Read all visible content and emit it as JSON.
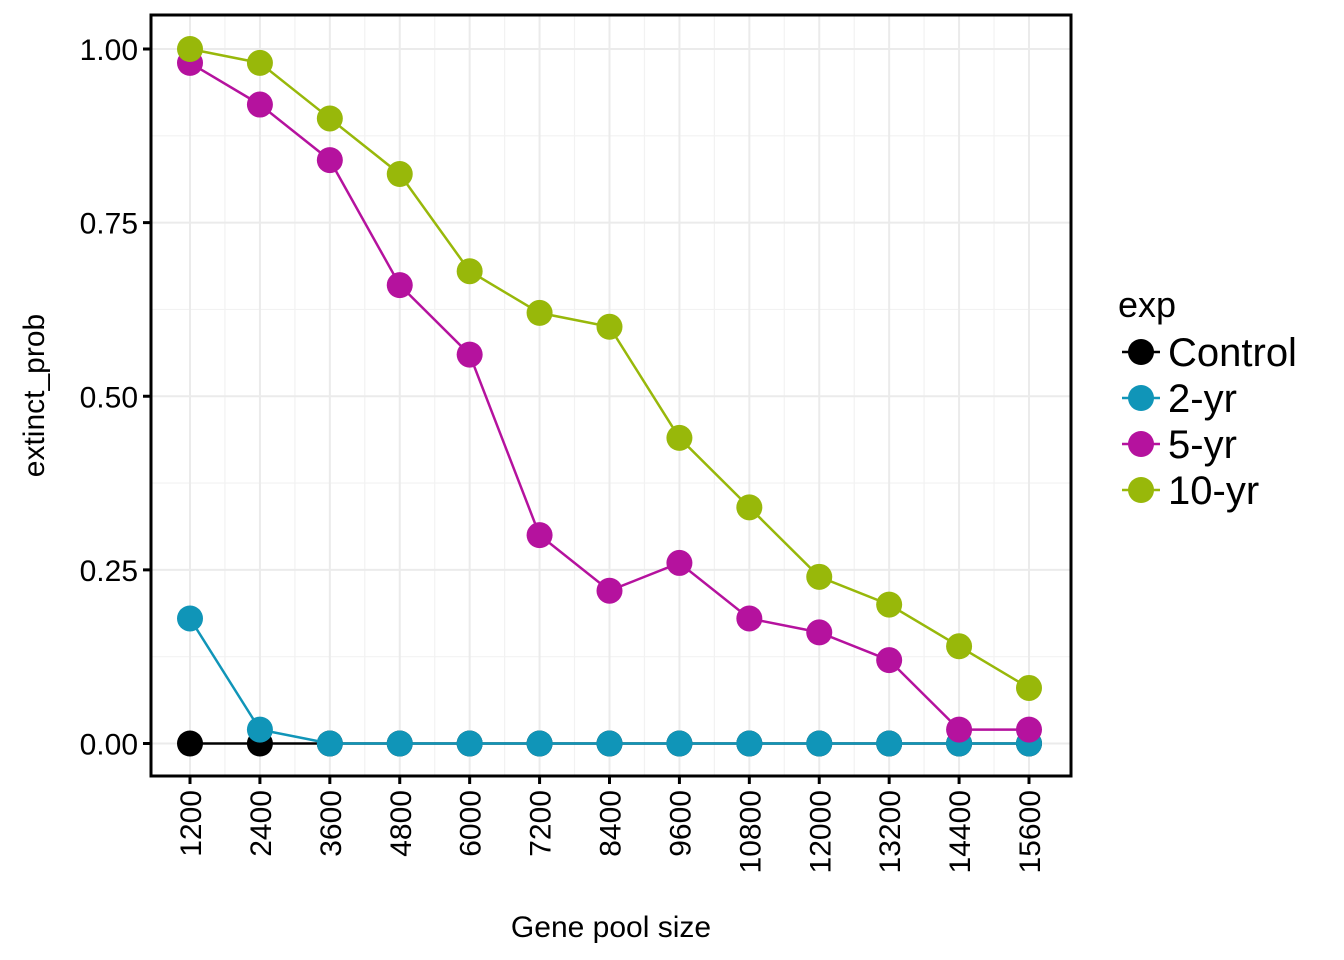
{
  "chart_data": {
    "type": "line",
    "xlabel": "Gene pool size",
    "ylabel": "extinct_prob",
    "categories": [
      "1200",
      "2400",
      "3600",
      "4800",
      "6000",
      "7200",
      "8400",
      "9600",
      "10800",
      "12000",
      "13200",
      "14400",
      "15600"
    ],
    "y_ticks": [
      "0.00",
      "0.25",
      "0.50",
      "0.75",
      "1.00"
    ],
    "ylim": [
      -0.047,
      1.047
    ],
    "grid": true,
    "legend": {
      "title": "exp",
      "position": "right"
    },
    "series": [
      {
        "name": "Control",
        "color": "#000000",
        "values": [
          0,
          0,
          0,
          0,
          0,
          0,
          0,
          0,
          0,
          0,
          0,
          0,
          0
        ]
      },
      {
        "name": "2-yr",
        "color": "#1095b8",
        "values": [
          0.18,
          0.02,
          0,
          0,
          0,
          0,
          0,
          0,
          0,
          0,
          0,
          0,
          0
        ]
      },
      {
        "name": "5-yr",
        "color": "#b5129e",
        "values": [
          0.98,
          0.92,
          0.84,
          0.66,
          0.56,
          0.3,
          0.22,
          0.26,
          0.18,
          0.16,
          0.12,
          0.02,
          0.02
        ]
      },
      {
        "name": "10-yr",
        "color": "#98b80a",
        "values": [
          1.0,
          0.98,
          0.9,
          0.82,
          0.68,
          0.62,
          0.6,
          0.44,
          0.34,
          0.24,
          0.2,
          0.14,
          0.08
        ]
      }
    ]
  }
}
